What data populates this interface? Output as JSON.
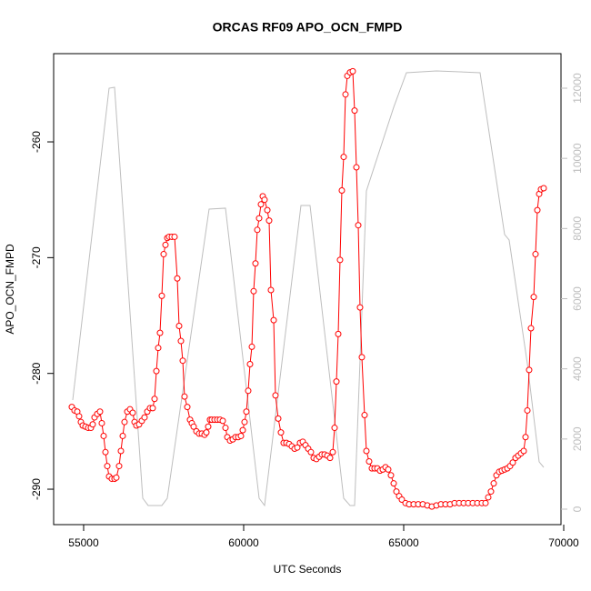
{
  "chart_data": {
    "type": "line",
    "title": "ORCAS RF09 APO_OCN_FMPD",
    "x_label": "UTC Seconds",
    "y_label": "APO_OCN_FMPD",
    "xlim": [
      54063,
      69915
    ],
    "ylim": [
      -293.06,
      -252.38
    ],
    "y2lim": [
      -441,
      12985
    ],
    "xticks": [
      55000,
      60000,
      65000,
      70000
    ],
    "yticks": [
      -290,
      -280,
      -270,
      -260
    ],
    "y2ticks": [
      0,
      2000,
      4000,
      6000,
      8000,
      10000,
      12000
    ],
    "y2_color": "#bebebe",
    "series": [
      {
        "color": "#bebebe",
        "axis": "y2",
        "marker": "none",
        "x": [
          54659,
          55795,
          55966,
          56847,
          57017,
          57443,
          57614,
          58920,
          59432,
          60483,
          60653,
          61790,
          62074,
          63125,
          63324,
          63466,
          63835,
          64688,
          65085,
          66023,
          67386,
          68153,
          68295,
          68864,
          69233,
          69375
        ],
        "values": [
          3110,
          12000,
          12027,
          311,
          104,
          104,
          311,
          8554,
          8580,
          311,
          104,
          8657,
          8657,
          311,
          104,
          104,
          9072,
          11457,
          12442,
          12494,
          12442,
          7828,
          7672,
          4147,
          1348,
          1192
        ]
      },
      {
        "color": "#ff0000",
        "axis": "y",
        "marker": "circle",
        "x": [
          54631,
          54716,
          54801,
          54858,
          54915,
          54972,
          55057,
          55142,
          55227,
          55284,
          55341,
          55426,
          55511,
          55568,
          55625,
          55682,
          55739,
          55795,
          55881,
          55966,
          56023,
          56108,
          56165,
          56222,
          56278,
          56364,
          56449,
          56534,
          56591,
          56648,
          56733,
          56818,
          56903,
          56989,
          57074,
          57159,
          57216,
          57273,
          57330,
          57386,
          57443,
          57500,
          57557,
          57614,
          57670,
          57756,
          57841,
          57926,
          57983,
          58040,
          58097,
          58153,
          58239,
          58324,
          58381,
          58438,
          58523,
          58608,
          58693,
          58778,
          58835,
          58892,
          58949,
          59006,
          59091,
          59176,
          59261,
          59347,
          59432,
          59489,
          59574,
          59659,
          59744,
          59830,
          59915,
          59972,
          60028,
          60085,
          60142,
          60199,
          60256,
          60312,
          60369,
          60426,
          60483,
          60540,
          60597,
          60653,
          60739,
          60795,
          60852,
          60938,
          60994,
          61080,
          61165,
          61250,
          61335,
          61420,
          61506,
          61591,
          61676,
          61761,
          61847,
          61932,
          62017,
          62102,
          62188,
          62273,
          62358,
          62443,
          62528,
          62614,
          62699,
          62784,
          62841,
          62898,
          62955,
          63011,
          63068,
          63125,
          63182,
          63239,
          63324,
          63409,
          63466,
          63523,
          63580,
          63636,
          63693,
          63778,
          63835,
          63920,
          64006,
          64091,
          64176,
          64261,
          64347,
          64432,
          64517,
          64602,
          64688,
          64773,
          64858,
          64943,
          65057,
          65170,
          65312,
          65455,
          65597,
          65739,
          65881,
          66023,
          66165,
          66307,
          66449,
          66591,
          66733,
          66875,
          67017,
          67159,
          67301,
          67443,
          67557,
          67642,
          67727,
          67813,
          67898,
          67983,
          68068,
          68153,
          68239,
          68324,
          68409,
          68494,
          68580,
          68665,
          68750,
          68807,
          68864,
          68920,
          68977,
          69063,
          69119,
          69176,
          69233,
          69290,
          69375
        ],
        "values": [
          -282.9,
          -283.2,
          -283.3,
          -283.7,
          -284.2,
          -284.5,
          -284.6,
          -284.7,
          -284.7,
          -284.4,
          -283.8,
          -283.5,
          -283.3,
          -284.3,
          -285.4,
          -286.8,
          -288.0,
          -288.9,
          -289.1,
          -289.1,
          -289.0,
          -288.0,
          -286.7,
          -285.4,
          -284.2,
          -283.3,
          -283.1,
          -283.4,
          -284.2,
          -284.5,
          -284.4,
          -284.1,
          -283.8,
          -283.3,
          -283.0,
          -283.0,
          -282.2,
          -279.8,
          -277.8,
          -276.5,
          -273.3,
          -269.7,
          -268.9,
          -268.3,
          -268.2,
          -268.2,
          -268.2,
          -271.8,
          -275.9,
          -277.2,
          -278.9,
          -282.0,
          -282.9,
          -284.0,
          -284.3,
          -284.6,
          -285.0,
          -285.2,
          -285.2,
          -285.3,
          -285.1,
          -284.6,
          -284.0,
          -284.0,
          -284.0,
          -284.0,
          -284.0,
          -284.1,
          -284.7,
          -285.5,
          -285.8,
          -285.7,
          -285.5,
          -285.5,
          -285.4,
          -284.9,
          -284.2,
          -283.3,
          -281.5,
          -279.2,
          -277.7,
          -272.9,
          -270.5,
          -267.6,
          -266.6,
          -265.4,
          -264.7,
          -265.0,
          -265.9,
          -266.8,
          -272.8,
          -275.4,
          -281.9,
          -283.9,
          -285.1,
          -286.0,
          -286.0,
          -286.1,
          -286.3,
          -286.5,
          -286.4,
          -286.0,
          -285.9,
          -286.2,
          -286.5,
          -286.8,
          -287.3,
          -287.4,
          -287.2,
          -287.0,
          -287.0,
          -287.1,
          -287.3,
          -286.8,
          -284.7,
          -280.7,
          -276.6,
          -270.2,
          -264.2,
          -261.3,
          -255.9,
          -254.3,
          -254.0,
          -253.9,
          -257.3,
          -262.2,
          -267.2,
          -274.3,
          -278.6,
          -283.6,
          -286.7,
          -287.6,
          -288.2,
          -288.2,
          -288.2,
          -288.4,
          -288.3,
          -288.1,
          -288.3,
          -288.8,
          -289.5,
          -290.2,
          -290.6,
          -290.9,
          -291.2,
          -291.3,
          -291.3,
          -291.3,
          -291.3,
          -291.4,
          -291.5,
          -291.4,
          -291.3,
          -291.3,
          -291.3,
          -291.2,
          -291.2,
          -291.2,
          -291.2,
          -291.2,
          -291.2,
          -291.2,
          -291.2,
          -290.7,
          -290.2,
          -289.5,
          -288.8,
          -288.5,
          -288.4,
          -288.3,
          -288.2,
          -288.0,
          -287.7,
          -287.3,
          -287.1,
          -286.9,
          -286.7,
          -285.5,
          -283.2,
          -279.7,
          -276.1,
          -273.4,
          -269.7,
          -265.9,
          -264.5,
          -264.1,
          -264.0
        ]
      }
    ]
  }
}
